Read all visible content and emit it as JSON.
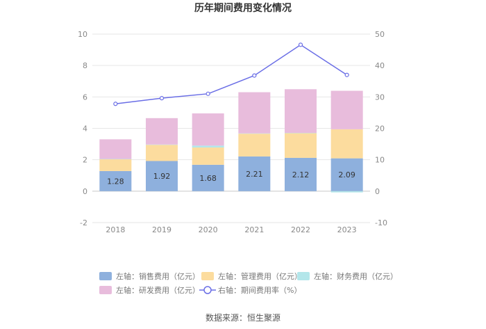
{
  "chart_data": {
    "type": "bar",
    "title": "历年期间费用变化情况",
    "categories": [
      "2018",
      "2019",
      "2020",
      "2021",
      "2022",
      "2023"
    ],
    "series": [
      {
        "name": "左轴：销售费用（亿元）",
        "axis": "left",
        "kind": "bar",
        "color": "#8eb0dd",
        "values": [
          1.28,
          1.92,
          1.68,
          2.21,
          2.12,
          2.09
        ],
        "labels": [
          "1.28",
          "1.92",
          "1.68",
          "2.21",
          "2.12",
          "2.09"
        ]
      },
      {
        "name": "左轴：管理费用（亿元）",
        "axis": "left",
        "kind": "bar",
        "color": "#fcdc9e",
        "values": [
          0.75,
          1.03,
          1.1,
          1.45,
          1.57,
          1.85
        ]
      },
      {
        "name": "左轴：财务费用（亿元）",
        "axis": "left",
        "kind": "bar",
        "color": "#b3e6ea",
        "values": [
          0.02,
          0.02,
          0.12,
          0.02,
          0.02,
          -0.08
        ]
      },
      {
        "name": "左轴：研发费用（亿元）",
        "axis": "left",
        "kind": "bar",
        "color": "#e8bcdc",
        "values": [
          1.25,
          1.68,
          2.05,
          2.62,
          2.78,
          2.45
        ]
      },
      {
        "name": "右轴：期间费用率（%）",
        "axis": "right",
        "kind": "line",
        "color": "#6a6ee6",
        "values": [
          27.8,
          29.6,
          31.0,
          36.8,
          46.6,
          37.0
        ]
      }
    ],
    "left_axis": {
      "min": -2,
      "max": 10,
      "ticks": [
        "-2",
        "0",
        "2",
        "4",
        "6",
        "8",
        "10"
      ]
    },
    "right_axis": {
      "min": -10,
      "max": 50,
      "ticks": [
        "-10",
        "0",
        "10",
        "20",
        "30",
        "40",
        "50"
      ]
    },
    "legend_position": "bottom",
    "source": "数据来源：恒生聚源"
  }
}
